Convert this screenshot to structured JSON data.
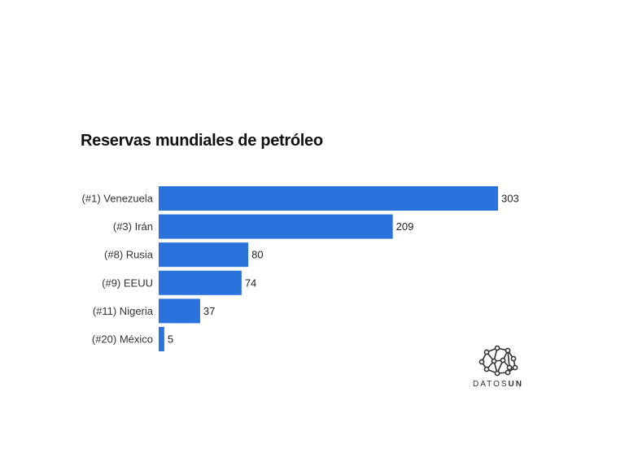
{
  "chart_data": {
    "type": "bar",
    "orientation": "horizontal",
    "title": "Reservas mundiales de petróleo",
    "categories": [
      "(#1) Venezuela",
      "(#3) Irán",
      "(#8) Rusia",
      "(#9) EEUU",
      "(#11) Nigeria",
      "(#20) México"
    ],
    "values": [
      303,
      209,
      80,
      74,
      37,
      5
    ],
    "xlim": [
      0,
      303
    ],
    "grid": false,
    "bar_color": "#2b73dc"
  },
  "logo": {
    "text": "DATOSUN",
    "icon": "network-icon"
  }
}
